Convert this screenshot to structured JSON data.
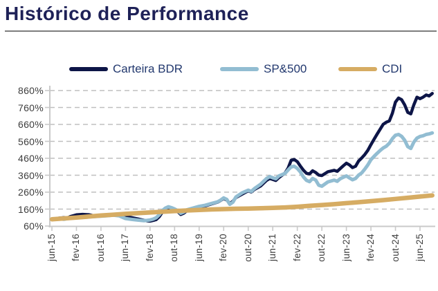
{
  "header": {
    "title": "Histórico de Performance"
  },
  "colors": {
    "title_text": "#1e2157",
    "rule": "#7d7d7d",
    "legend_text": "#22386e",
    "axis_label": "#3d3d3d",
    "axis_line": "#c9c9c9",
    "grid_line": "#bfbfbf",
    "background": "#ffffff"
  },
  "chart_data": {
    "type": "line",
    "title": "Histórico de Performance",
    "xlabel": "",
    "ylabel": "",
    "x_unit": "months since jun-15",
    "y_unit": "percent (accumulated performance, base 100%)",
    "y_range": [
      60,
      860
    ],
    "y_tick_step": 100,
    "y_tick_labels": [
      "860%",
      "760%",
      "660%",
      "560%",
      "460%",
      "360%",
      "260%",
      "160%",
      "60%"
    ],
    "x_tick_labels": [
      "jun-15",
      "fev-16",
      "out-16",
      "jun-17",
      "fev-18",
      "out-18",
      "jun-19",
      "fev-20",
      "out-20",
      "jun-21",
      "fev-22",
      "out-22",
      "jun-23",
      "fev-24",
      "out-24",
      "jun-25"
    ],
    "x_tick_months": [
      0,
      8,
      16,
      24,
      32,
      40,
      48,
      56,
      64,
      72,
      80,
      88,
      96,
      104,
      112,
      120
    ],
    "grid": "horizontal-dashed",
    "legend_position": "top",
    "series": [
      {
        "name": "Carteira BDR",
        "color": "#0d1547",
        "stroke_width": 4.5,
        "points": [
          [
            0,
            100
          ],
          [
            2,
            106
          ],
          [
            4,
            110
          ],
          [
            5,
            107
          ],
          [
            6,
            116
          ],
          [
            8,
            126
          ],
          [
            10,
            129
          ],
          [
            12,
            127
          ],
          [
            14,
            120
          ],
          [
            16,
            119
          ],
          [
            18,
            123
          ],
          [
            20,
            127
          ],
          [
            22,
            123
          ],
          [
            24,
            117
          ],
          [
            26,
            110
          ],
          [
            28,
            102
          ],
          [
            30,
            94
          ],
          [
            31,
            90
          ],
          [
            32,
            89
          ],
          [
            33,
            93
          ],
          [
            34,
            98
          ],
          [
            35,
            115
          ],
          [
            36,
            142
          ],
          [
            37,
            158
          ],
          [
            38,
            166
          ],
          [
            39,
            160
          ],
          [
            40,
            154
          ],
          [
            41,
            146
          ],
          [
            42,
            128
          ],
          [
            43,
            136
          ],
          [
            44,
            150
          ],
          [
            46,
            161
          ],
          [
            48,
            172
          ],
          [
            50,
            179
          ],
          [
            52,
            190
          ],
          [
            54,
            201
          ],
          [
            55,
            211
          ],
          [
            56,
            222
          ],
          [
            57,
            214
          ],
          [
            58,
            193
          ],
          [
            59,
            206
          ],
          [
            60,
            228
          ],
          [
            62,
            248
          ],
          [
            64,
            268
          ],
          [
            65,
            261
          ],
          [
            66,
            276
          ],
          [
            68,
            296
          ],
          [
            70,
            330
          ],
          [
            71,
            341
          ],
          [
            72,
            335
          ],
          [
            73,
            329
          ],
          [
            74,
            346
          ],
          [
            76,
            373
          ],
          [
            77,
            402
          ],
          [
            78,
            448
          ],
          [
            79,
            453
          ],
          [
            80,
            440
          ],
          [
            81,
            414
          ],
          [
            82,
            390
          ],
          [
            83,
            371
          ],
          [
            84,
            368
          ],
          [
            85,
            386
          ],
          [
            86,
            376
          ],
          [
            87,
            361
          ],
          [
            88,
            358
          ],
          [
            90,
            381
          ],
          [
            92,
            389
          ],
          [
            93,
            383
          ],
          [
            94,
            399
          ],
          [
            95,
            416
          ],
          [
            96,
            431
          ],
          [
            97,
            421
          ],
          [
            98,
            405
          ],
          [
            99,
            413
          ],
          [
            100,
            444
          ],
          [
            101,
            462
          ],
          [
            102,
            482
          ],
          [
            103,
            507
          ],
          [
            104,
            541
          ],
          [
            105,
            572
          ],
          [
            106,
            602
          ],
          [
            107,
            632
          ],
          [
            108,
            661
          ],
          [
            109,
            673
          ],
          [
            110,
            681
          ],
          [
            111,
            726
          ],
          [
            112,
            792
          ],
          [
            113,
            816
          ],
          [
            114,
            806
          ],
          [
            115,
            776
          ],
          [
            116,
            731
          ],
          [
            117,
            722
          ],
          [
            118,
            776
          ],
          [
            119,
            821
          ],
          [
            120,
            812
          ],
          [
            121,
            821
          ],
          [
            122,
            834
          ],
          [
            123,
            828
          ],
          [
            124,
            843
          ]
        ]
      },
      {
        "name": "SP&500",
        "color": "#92bdd2",
        "stroke_width": 5,
        "points": [
          [
            0,
            100
          ],
          [
            2,
            103
          ],
          [
            4,
            100
          ],
          [
            6,
            107
          ],
          [
            8,
            109
          ],
          [
            10,
            112
          ],
          [
            12,
            114
          ],
          [
            14,
            116
          ],
          [
            16,
            118
          ],
          [
            18,
            121
          ],
          [
            20,
            124
          ],
          [
            22,
            120
          ],
          [
            23,
            112
          ],
          [
            24,
            104
          ],
          [
            26,
            99
          ],
          [
            28,
            95
          ],
          [
            30,
            92
          ],
          [
            31,
            93
          ],
          [
            32,
            96
          ],
          [
            33,
            101
          ],
          [
            34,
            109
          ],
          [
            35,
            127
          ],
          [
            36,
            150
          ],
          [
            37,
            166
          ],
          [
            38,
            174
          ],
          [
            39,
            168
          ],
          [
            40,
            161
          ],
          [
            41,
            151
          ],
          [
            42,
            135
          ],
          [
            43,
            143
          ],
          [
            44,
            156
          ],
          [
            46,
            166
          ],
          [
            48,
            176
          ],
          [
            50,
            183
          ],
          [
            52,
            193
          ],
          [
            54,
            203
          ],
          [
            55,
            213
          ],
          [
            56,
            226
          ],
          [
            57,
            217
          ],
          [
            58,
            188
          ],
          [
            59,
            201
          ],
          [
            60,
            232
          ],
          [
            62,
            256
          ],
          [
            64,
            272
          ],
          [
            65,
            264
          ],
          [
            66,
            281
          ],
          [
            68,
            306
          ],
          [
            70,
            341
          ],
          [
            71,
            352
          ],
          [
            72,
            345
          ],
          [
            73,
            339
          ],
          [
            74,
            356
          ],
          [
            76,
            371
          ],
          [
            77,
            391
          ],
          [
            78,
            409
          ],
          [
            79,
            413
          ],
          [
            80,
            400
          ],
          [
            81,
            379
          ],
          [
            82,
            350
          ],
          [
            83,
            330
          ],
          [
            84,
            322
          ],
          [
            85,
            341
          ],
          [
            86,
            331
          ],
          [
            87,
            301
          ],
          [
            88,
            295
          ],
          [
            90,
            321
          ],
          [
            92,
            331
          ],
          [
            93,
            324
          ],
          [
            94,
            339
          ],
          [
            95,
            348
          ],
          [
            96,
            356
          ],
          [
            97,
            344
          ],
          [
            98,
            333
          ],
          [
            99,
            341
          ],
          [
            100,
            361
          ],
          [
            101,
            374
          ],
          [
            102,
            396
          ],
          [
            103,
            421
          ],
          [
            104,
            452
          ],
          [
            105,
            471
          ],
          [
            106,
            489
          ],
          [
            107,
            506
          ],
          [
            108,
            521
          ],
          [
            109,
            531
          ],
          [
            110,
            549
          ],
          [
            111,
            576
          ],
          [
            112,
            596
          ],
          [
            113,
            601
          ],
          [
            114,
            590
          ],
          [
            115,
            567
          ],
          [
            116,
            529
          ],
          [
            117,
            518
          ],
          [
            118,
            556
          ],
          [
            119,
            579
          ],
          [
            120,
            589
          ],
          [
            121,
            593
          ],
          [
            122,
            601
          ],
          [
            123,
            604
          ],
          [
            124,
            610
          ]
        ]
      },
      {
        "name": "CDI",
        "color": "#d6ac63",
        "stroke_width": 6.5,
        "points": [
          [
            0,
            100
          ],
          [
            4,
            105
          ],
          [
            8,
            110
          ],
          [
            12,
            116
          ],
          [
            16,
            122
          ],
          [
            20,
            127
          ],
          [
            24,
            132
          ],
          [
            28,
            136
          ],
          [
            32,
            140
          ],
          [
            36,
            144
          ],
          [
            40,
            148
          ],
          [
            44,
            152
          ],
          [
            48,
            155
          ],
          [
            52,
            158
          ],
          [
            56,
            160
          ],
          [
            60,
            162
          ],
          [
            64,
            163
          ],
          [
            68,
            165
          ],
          [
            72,
            167
          ],
          [
            76,
            170
          ],
          [
            80,
            174
          ],
          [
            84,
            179
          ],
          [
            88,
            184
          ],
          [
            92,
            189
          ],
          [
            96,
            195
          ],
          [
            100,
            201
          ],
          [
            104,
            207
          ],
          [
            108,
            213
          ],
          [
            112,
            220
          ],
          [
            116,
            227
          ],
          [
            120,
            234
          ],
          [
            124,
            241
          ]
        ]
      }
    ]
  }
}
